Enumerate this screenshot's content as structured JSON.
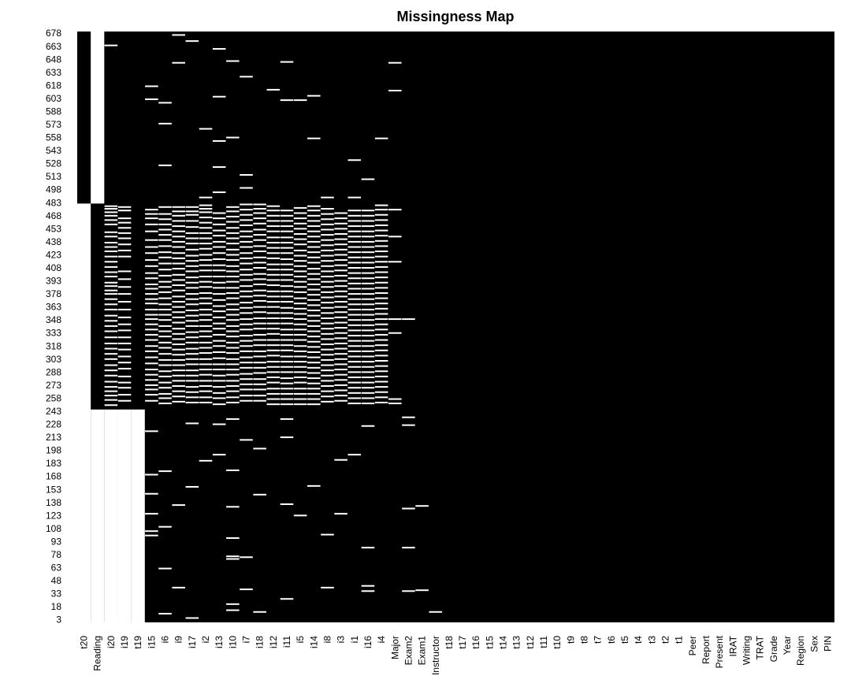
{
  "chart_data": {
    "type": "heatmap",
    "title": "Missingness Map",
    "colors": {
      "observed": "#000000",
      "missing": "#ffffff"
    },
    "n_rows": 680,
    "y_ticks": [
      678,
      663,
      648,
      633,
      618,
      603,
      588,
      573,
      558,
      543,
      528,
      513,
      498,
      483,
      468,
      453,
      438,
      423,
      408,
      393,
      378,
      363,
      348,
      333,
      318,
      303,
      288,
      273,
      258,
      243,
      228,
      213,
      198,
      183,
      168,
      153,
      138,
      123,
      108,
      93,
      78,
      63,
      48,
      33,
      18,
      3
    ],
    "columns": [
      "t20",
      "Reading",
      "i20",
      "i19",
      "t19",
      "i15",
      "i6",
      "i9",
      "i17",
      "i2",
      "i13",
      "i10",
      "i7",
      "i18",
      "i12",
      "i11",
      "i5",
      "i14",
      "i8",
      "i3",
      "i1",
      "i16",
      "i4",
      "Major",
      "Exam2",
      "Exam1",
      "Instructor",
      "t18",
      "t17",
      "t16",
      "t15",
      "t14",
      "t13",
      "t12",
      "t11",
      "t10",
      "t9",
      "t8",
      "t7",
      "t6",
      "t5",
      "t4",
      "t3",
      "t2",
      "t1",
      "Peer",
      "Report",
      "Present",
      "IRAT",
      "Writing",
      "TRAT",
      "Grade",
      "Year",
      "Region",
      "Sex",
      "PIN"
    ],
    "missing_blocks": [
      {
        "column": "t20",
        "rows": [
          1,
          482
        ]
      },
      {
        "column": "Reading",
        "rows": [
          483,
          680
        ]
      },
      {
        "column": "Reading",
        "rows": [
          1,
          245
        ]
      },
      {
        "column": "i20",
        "rows": [
          1,
          245
        ]
      },
      {
        "column": "i19",
        "rows": [
          1,
          245
        ]
      },
      {
        "column": "t19",
        "rows": [
          1,
          245
        ]
      }
    ],
    "missing_entries": {
      "i20": [
        664,
        479,
        476,
        472,
        468,
        463,
        458,
        449,
        444,
        437,
        432,
        427,
        421,
        415,
        409,
        403,
        398,
        391,
        387,
        382,
        378,
        372,
        366,
        360,
        353,
        347,
        341,
        335,
        328,
        321,
        315,
        309,
        303,
        296,
        290,
        284,
        277,
        271,
        266,
        261,
        256,
        250
      ],
      "i19": [
        478,
        474,
        465,
        460,
        454,
        448,
        442,
        435,
        428,
        421,
        404,
        395,
        386,
        378,
        369,
        360,
        351,
        343,
        336,
        328,
        321,
        314,
        306,
        299,
        292,
        283,
        276,
        270,
        262,
        255
      ],
      "i15": [
        617,
        602,
        475,
        470,
        465,
        458,
        450,
        440,
        432,
        425,
        417,
        410,
        402,
        396,
        389,
        384,
        378,
        372,
        367,
        360,
        354,
        349,
        343,
        337,
        331,
        325,
        318,
        312,
        305,
        298,
        291,
        285,
        279,
        273,
        268,
        262,
        255,
        220,
        170,
        148,
        125,
        105,
        100
      ],
      "i6": [
        598,
        574,
        526,
        478,
        470,
        464,
        458,
        452,
        446,
        440,
        433,
        426,
        420,
        413,
        406,
        399,
        392,
        386,
        380,
        373,
        366,
        360,
        354,
        348,
        341,
        335,
        329,
        322,
        316,
        309,
        302,
        296,
        289,
        283,
        276,
        270,
        263,
        258,
        252,
        174,
        110,
        62,
        10
      ],
      "i9": [
        676,
        644,
        478,
        473,
        468,
        462,
        456,
        450,
        444,
        438,
        432,
        425,
        419,
        413,
        407,
        400,
        394,
        388,
        382,
        375,
        369,
        363,
        357,
        351,
        345,
        338,
        332,
        326,
        320,
        314,
        308,
        302,
        296,
        290,
        284,
        278,
        272,
        266,
        260,
        254,
        135,
        40
      ],
      "i17": [
        669,
        478,
        473,
        469,
        462,
        455,
        448,
        442,
        436,
        429,
        422,
        416,
        410,
        404,
        397,
        391,
        385,
        378,
        372,
        366,
        359,
        353,
        347,
        341,
        334,
        328,
        322,
        315,
        309,
        303,
        297,
        290,
        284,
        278,
        271,
        265,
        259,
        253,
        229,
        156,
        5
      ],
      "i2": [
        568,
        489,
        480,
        476,
        472,
        466,
        460,
        454,
        448,
        442,
        436,
        430,
        423,
        417,
        411,
        405,
        398,
        392,
        386,
        379,
        373,
        367,
        360,
        354,
        348,
        341,
        335,
        329,
        322,
        316,
        310,
        303,
        297,
        291,
        285,
        278,
        272,
        266,
        259,
        253,
        186
      ],
      "i13": [
        660,
        605,
        554,
        524,
        495,
        471,
        465,
        458,
        451,
        445,
        438,
        432,
        425,
        418,
        411,
        405,
        398,
        391,
        385,
        378,
        371,
        364,
        358,
        351,
        344,
        338,
        331,
        324,
        318,
        311,
        304,
        297,
        291,
        284,
        278,
        271,
        264,
        258,
        251,
        228,
        193
      ],
      "i10": [
        646,
        558,
        478,
        473,
        467,
        461,
        454,
        448,
        442,
        436,
        429,
        423,
        417,
        410,
        404,
        398,
        392,
        385,
        379,
        373,
        366,
        360,
        354,
        348,
        341,
        335,
        329,
        322,
        316,
        310,
        303,
        297,
        291,
        285,
        278,
        272,
        266,
        259,
        253,
        234,
        175,
        133,
        97,
        76,
        73,
        21,
        14
      ],
      "i7": [
        628,
        515,
        500,
        481,
        475,
        469,
        463,
        457,
        450,
        444,
        438,
        432,
        425,
        419,
        413,
        406,
        400,
        394,
        387,
        381,
        375,
        368,
        362,
        356,
        349,
        343,
        337,
        330,
        324,
        318,
        312,
        305,
        299,
        293,
        286,
        280,
        274,
        268,
        261,
        255,
        210,
        75,
        38
      ],
      "i18": [
        481,
        476,
        471,
        465,
        459,
        452,
        446,
        440,
        433,
        427,
        420,
        414,
        408,
        401,
        395,
        389,
        382,
        376,
        370,
        363,
        357,
        350,
        344,
        338,
        331,
        325,
        319,
        312,
        306,
        299,
        293,
        287,
        280,
        274,
        268,
        261,
        255,
        200,
        147,
        12
      ],
      "i12": [
        613,
        479,
        474,
        468,
        462,
        456,
        450,
        443,
        437,
        431,
        425,
        419,
        412,
        406,
        400,
        394,
        388,
        381,
        375,
        369,
        363,
        356,
        350,
        344,
        338,
        332,
        325,
        319,
        313,
        307,
        300,
        294,
        288,
        282,
        276,
        269,
        263,
        257,
        251
      ],
      "i11": [
        645,
        601,
        474,
        468,
        462,
        456,
        450,
        443,
        437,
        431,
        425,
        418,
        412,
        406,
        400,
        394,
        387,
        381,
        375,
        369,
        362,
        356,
        350,
        344,
        337,
        331,
        325,
        319,
        313,
        306,
        300,
        294,
        288,
        281,
        275,
        269,
        263,
        257,
        251,
        234,
        213,
        136,
        27
      ],
      "i5": [
        601,
        477,
        471,
        465,
        459,
        453,
        447,
        441,
        435,
        428,
        422,
        416,
        410,
        404,
        398,
        392,
        386,
        380,
        373,
        367,
        361,
        355,
        349,
        343,
        337,
        331,
        325,
        318,
        312,
        306,
        300,
        294,
        288,
        282,
        276,
        269,
        263,
        257,
        251,
        123
      ],
      "i14": [
        606,
        557,
        479,
        474,
        468,
        462,
        456,
        450,
        444,
        438,
        432,
        426,
        420,
        414,
        407,
        401,
        395,
        389,
        383,
        377,
        371,
        365,
        359,
        353,
        347,
        341,
        335,
        329,
        323,
        317,
        311,
        305,
        299,
        293,
        287,
        281,
        275,
        269,
        263,
        257,
        251,
        157
      ],
      "i8": [
        489,
        476,
        470,
        464,
        458,
        452,
        446,
        440,
        434,
        428,
        422,
        416,
        410,
        404,
        398,
        392,
        386,
        380,
        374,
        368,
        362,
        356,
        350,
        344,
        338,
        332,
        326,
        320,
        314,
        308,
        302,
        296,
        290,
        284,
        278,
        272,
        266,
        260,
        254,
        101,
        40
      ],
      "i3": [
        471,
        465,
        459,
        453,
        447,
        441,
        435,
        429,
        423,
        417,
        411,
        405,
        399,
        393,
        387,
        381,
        375,
        369,
        363,
        357,
        351,
        345,
        339,
        333,
        327,
        321,
        315,
        309,
        303,
        297,
        291,
        285,
        279,
        273,
        267,
        261,
        255,
        187,
        125
      ],
      "i1": [
        532,
        489,
        474,
        468,
        462,
        456,
        450,
        444,
        438,
        432,
        426,
        420,
        414,
        408,
        402,
        396,
        390,
        384,
        378,
        372,
        366,
        360,
        354,
        348,
        342,
        336,
        330,
        324,
        318,
        312,
        306,
        300,
        294,
        288,
        282,
        276,
        270,
        264,
        258,
        252,
        193
      ],
      "i16": [
        510,
        474,
        468,
        462,
        456,
        450,
        444,
        438,
        432,
        426,
        420,
        414,
        408,
        402,
        396,
        390,
        384,
        378,
        372,
        366,
        360,
        354,
        348,
        342,
        336,
        330,
        324,
        318,
        312,
        306,
        300,
        294,
        288,
        282,
        276,
        270,
        264,
        258,
        252,
        226,
        86,
        42,
        36
      ],
      "i4": [
        557,
        480,
        475,
        469,
        463,
        457,
        451,
        445,
        439,
        433,
        427,
        421,
        415,
        409,
        403,
        397,
        391,
        385,
        379,
        373,
        367,
        361,
        355,
        349,
        343,
        337,
        331,
        325,
        319,
        313,
        307,
        301,
        295,
        289,
        283,
        277,
        271,
        265,
        259,
        253
      ],
      "Major": [
        644,
        612,
        475,
        444,
        415,
        349,
        333,
        257,
        252
      ],
      "Exam2": [
        349,
        236,
        227,
        131,
        86,
        36
      ],
      "Exam1": [
        134,
        37
      ],
      "Instructor": [
        12
      ]
    }
  }
}
